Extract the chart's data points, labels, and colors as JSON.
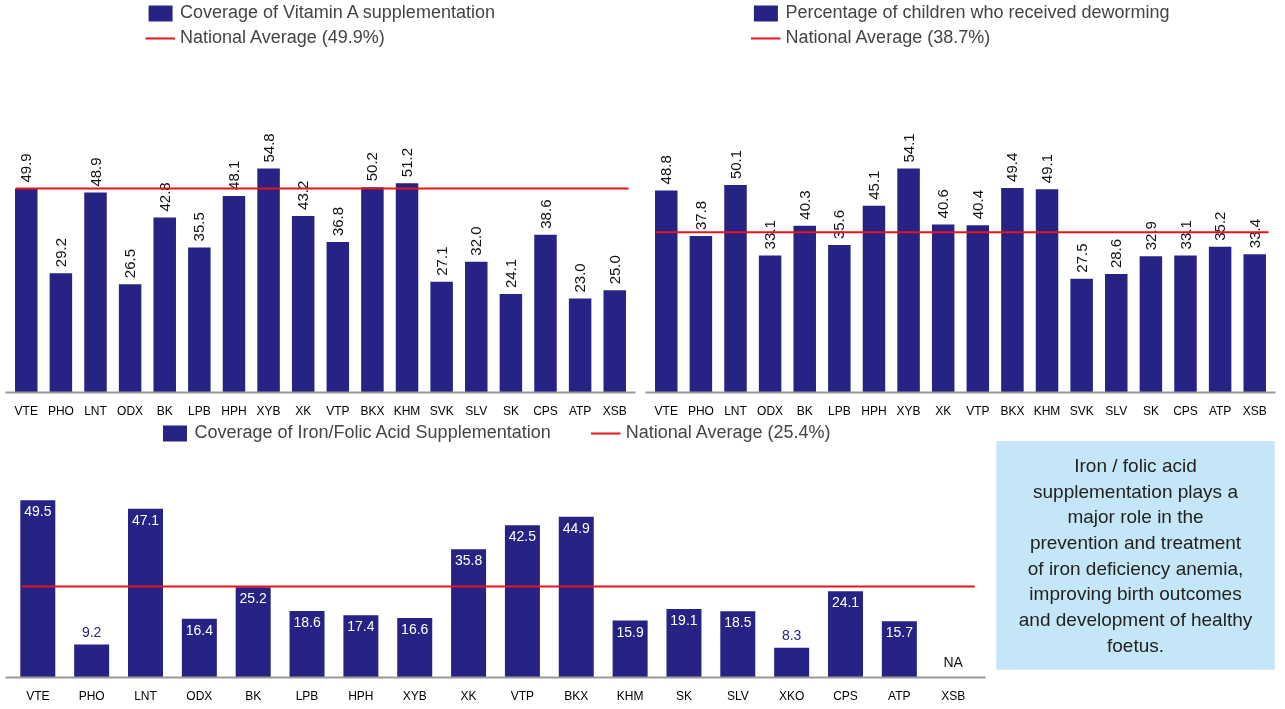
{
  "chart_data": [
    {
      "type": "bar",
      "categories": [
        "VTE",
        "PHO",
        "LNT",
        "ODX",
        "BK",
        "LPB",
        "HPH",
        "XYB",
        "XK",
        "VTP",
        "BKX",
        "KHM",
        "SVK",
        "SLV",
        "SK",
        "CPS",
        "ATP",
        "XSB"
      ],
      "series": [
        {
          "name": "Coverage of Vitamin A supplementation",
          "color": "#262385",
          "values": [
            49.9,
            29.2,
            48.9,
            26.5,
            42.8,
            35.5,
            48.1,
            54.8,
            43.2,
            36.8,
            50.2,
            51.2,
            27.1,
            32.0,
            24.1,
            38.6,
            23.0,
            25.0
          ],
          "value_labels": [
            "49.9",
            "29.2",
            "48.9",
            "26.5",
            "42.8",
            "35.5",
            "48.1",
            "54.8",
            "43.2",
            "36.8",
            "50.2",
            "51.2",
            "27.1",
            "32.0",
            "24.1",
            "38.6",
            "23.0",
            "25.0"
          ]
        }
      ],
      "ref_lines": [
        {
          "axis": "y",
          "value": 49.9,
          "label": "National Average (49.9%)",
          "color": "#e8141c"
        }
      ],
      "legend": "top",
      "tick_labels": "x",
      "grid": false
    },
    {
      "type": "bar",
      "categories": [
        "VTE",
        "PHO",
        "LNT",
        "ODX",
        "BK",
        "LPB",
        "HPH",
        "XYB",
        "XK",
        "VTP",
        "BKX",
        "KHM",
        "SVK",
        "SLV",
        "SK",
        "CPS",
        "ATP",
        "XSB"
      ],
      "series": [
        {
          "name": "Percentage of children who received deworming",
          "color": "#262385",
          "values": [
            48.8,
            37.8,
            50.1,
            33.1,
            40.3,
            35.6,
            45.1,
            54.1,
            40.6,
            40.4,
            49.4,
            49.1,
            27.5,
            28.6,
            32.9,
            33.1,
            35.2,
            33.4
          ]
        }
      ],
      "ref_lines": [
        {
          "axis": "y",
          "value": 38.7,
          "label": "National Average (38.7%)",
          "color": "#e8141c"
        }
      ],
      "data_labels": true,
      "legend": "top",
      "tick_labels": "x",
      "grid": false
    },
    {
      "type": "bar",
      "categories": [
        "VTE",
        "PHO",
        "LNT",
        "ODX",
        "BK",
        "LPB",
        "HPH",
        "XYB",
        "XK",
        "VTP",
        "BKX",
        "KHM",
        "SK",
        "SLV",
        "XKO",
        "CPS",
        "ATP",
        "XSB"
      ],
      "series": [
        {
          "name": "Coverage of Iron/Folic Acid Supplementation",
          "color": "#262385",
          "values": [
            49.5,
            9.2,
            47.1,
            16.4,
            25.2,
            18.6,
            17.4,
            16.6,
            35.8,
            42.5,
            44.9,
            15.9,
            19.1,
            18.5,
            8.3,
            24.1,
            15.7,
            null
          ],
          "value_labels": [
            "49.5",
            "9.2",
            "47.1",
            "16.4",
            "25.2",
            "18.6",
            "17.4",
            "16.6",
            "35.8",
            "42.5",
            "44.9",
            "15.9",
            "19.1",
            "18.5",
            "8.3",
            "24.1",
            "15.7",
            "NA"
          ]
        }
      ],
      "ref_lines": [
        {
          "axis": "y",
          "value": 25.4,
          "label": "National Average (25.4%)",
          "color": "#e8141c"
        }
      ],
      "legend": "top",
      "tick_labels": "x",
      "grid": false
    },
    {
      "type": "other",
      "annotations": [
        "Iron / folic acid supplementation plays a major role in the prevention and treatment of iron deficiency anemia, improving birth outcomes and development of healthy foetus."
      ]
    }
  ]
}
